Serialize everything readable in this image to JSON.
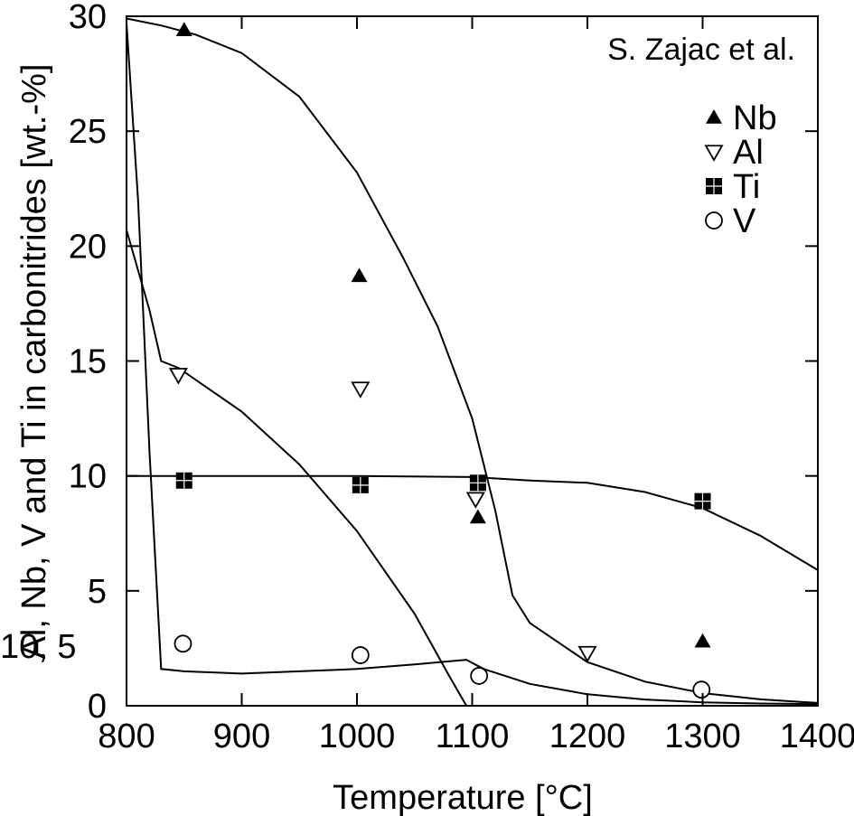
{
  "chart_data": {
    "type": "scatter",
    "xlabel": "Temperature [°C]",
    "ylabel": "Al, Nb, V and Ti in carbonitrides [wt.-%]",
    "xlim": [
      800,
      1400
    ],
    "ylim": [
      0,
      30
    ],
    "x_ticks": [
      800,
      900,
      1000,
      1100,
      1200,
      1300,
      1400
    ],
    "y_ticks": [
      0,
      5,
      10,
      15,
      20,
      25,
      30
    ],
    "grid": false,
    "legend_position": "top-right",
    "annotation": "S. Zajac et al.",
    "overlap_label": "10, 5",
    "series": [
      {
        "name": "Nb",
        "marker": "filled-triangle",
        "points": [
          [
            850,
            29.4
          ],
          [
            1002,
            18.7
          ],
          [
            1105,
            8.2
          ],
          [
            1300,
            2.8
          ]
        ]
      },
      {
        "name": "Al",
        "marker": "open-inverted-triangle",
        "points": [
          [
            845,
            14.4
          ],
          [
            1003,
            13.8
          ],
          [
            1103,
            9.0
          ],
          [
            1200,
            2.3
          ]
        ]
      },
      {
        "name": "Ti",
        "marker": "filled-square",
        "points": [
          [
            850,
            9.8
          ],
          [
            1003,
            9.6
          ],
          [
            1105,
            9.7
          ],
          [
            1300,
            8.9
          ]
        ]
      },
      {
        "name": "V",
        "marker": "open-circle",
        "points": [
          [
            849,
            2.7
          ],
          [
            1003,
            2.2
          ],
          [
            1106,
            1.3
          ],
          [
            1299,
            0.7
          ]
        ]
      }
    ],
    "curves": [
      {
        "points": [
          [
            800,
            29.9
          ],
          [
            830,
            29.6
          ],
          [
            860,
            29.2
          ],
          [
            900,
            28.4
          ],
          [
            950,
            26.5
          ],
          [
            1000,
            23.2
          ],
          [
            1040,
            19.5
          ],
          [
            1070,
            16.5
          ],
          [
            1100,
            12.5
          ],
          [
            1120,
            8.5
          ],
          [
            1135,
            4.8
          ],
          [
            1150,
            3.6
          ],
          [
            1200,
            1.9
          ],
          [
            1250,
            1.05
          ],
          [
            1300,
            0.55
          ],
          [
            1350,
            0.28
          ],
          [
            1400,
            0.12
          ]
        ]
      },
      {
        "points": [
          [
            800,
            20.7
          ],
          [
            820,
            17.2
          ],
          [
            830,
            15.0
          ],
          [
            845,
            14.7
          ],
          [
            900,
            12.8
          ],
          [
            950,
            10.5
          ],
          [
            1000,
            7.6
          ],
          [
            1050,
            4.0
          ],
          [
            1080,
            1.3
          ],
          [
            1095,
            0
          ]
        ]
      },
      {
        "points": [
          [
            800,
            10.0
          ],
          [
            900,
            10.0
          ],
          [
            1000,
            10.0
          ],
          [
            1100,
            9.95
          ],
          [
            1150,
            9.8
          ],
          [
            1200,
            9.7
          ],
          [
            1250,
            9.3
          ],
          [
            1300,
            8.6
          ],
          [
            1350,
            7.4
          ],
          [
            1400,
            5.9
          ]
        ]
      },
      {
        "points": [
          [
            800,
            29.7
          ],
          [
            810,
            22
          ],
          [
            820,
            11
          ],
          [
            830,
            1.6
          ],
          [
            850,
            1.5
          ],
          [
            900,
            1.4
          ],
          [
            950,
            1.5
          ],
          [
            1000,
            1.6
          ],
          [
            1050,
            1.8
          ],
          [
            1095,
            2.0
          ],
          [
            1110,
            1.6
          ],
          [
            1150,
            0.95
          ],
          [
            1200,
            0.5
          ],
          [
            1250,
            0.27
          ],
          [
            1300,
            0.15
          ],
          [
            1350,
            0.1
          ],
          [
            1400,
            0.07
          ]
        ]
      }
    ]
  }
}
